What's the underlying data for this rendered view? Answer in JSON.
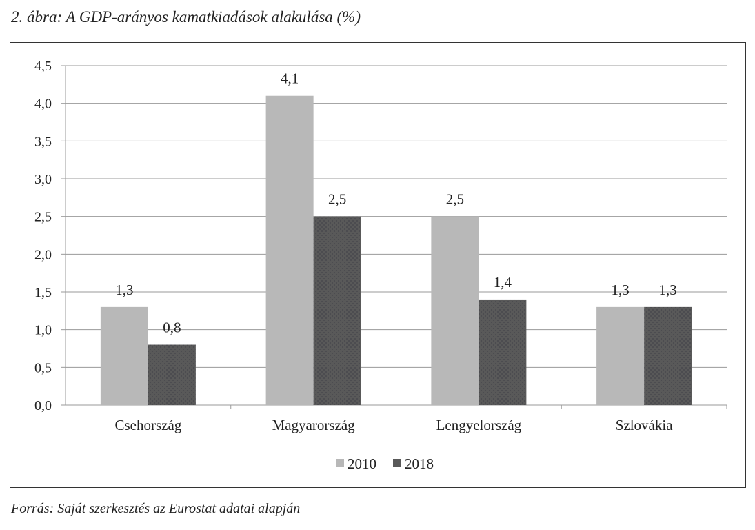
{
  "title": "2. ábra: A GDP-arányos kamatkiadások alakulása (%)",
  "source": "Forrás: Saját szerkesztés az Eurostat adatai alapján",
  "chart_data": {
    "type": "bar",
    "title": "2. ábra: A GDP-arányos kamatkiadások alakulása (%)",
    "xlabel": "",
    "ylabel": "",
    "categories": [
      "Csehország",
      "Magyarország",
      "Lengyelország",
      "Szlovákia"
    ],
    "series": [
      {
        "name": "2010",
        "values": [
          1.3,
          4.1,
          2.5,
          1.3
        ],
        "color": "#b8b8b8",
        "labels": [
          "1,3",
          "4,1",
          "2,5",
          "1,3"
        ]
      },
      {
        "name": "2018",
        "values": [
          0.8,
          2.5,
          1.4,
          1.3
        ],
        "color": "#595959",
        "labels": [
          "0,8",
          "2,5",
          "1,4",
          "1,3"
        ]
      }
    ],
    "ylim": [
      0,
      4.5
    ],
    "yticks": [
      0,
      0.5,
      1,
      1.5,
      2,
      2.5,
      3,
      3.5,
      4,
      4.5
    ],
    "ytick_labels": [
      "0,0",
      "0,5",
      "1,0",
      "1,5",
      "2,0",
      "2,5",
      "3,0",
      "3,5",
      "4,0",
      "4,5"
    ],
    "grid": true,
    "legend": "bottom"
  }
}
